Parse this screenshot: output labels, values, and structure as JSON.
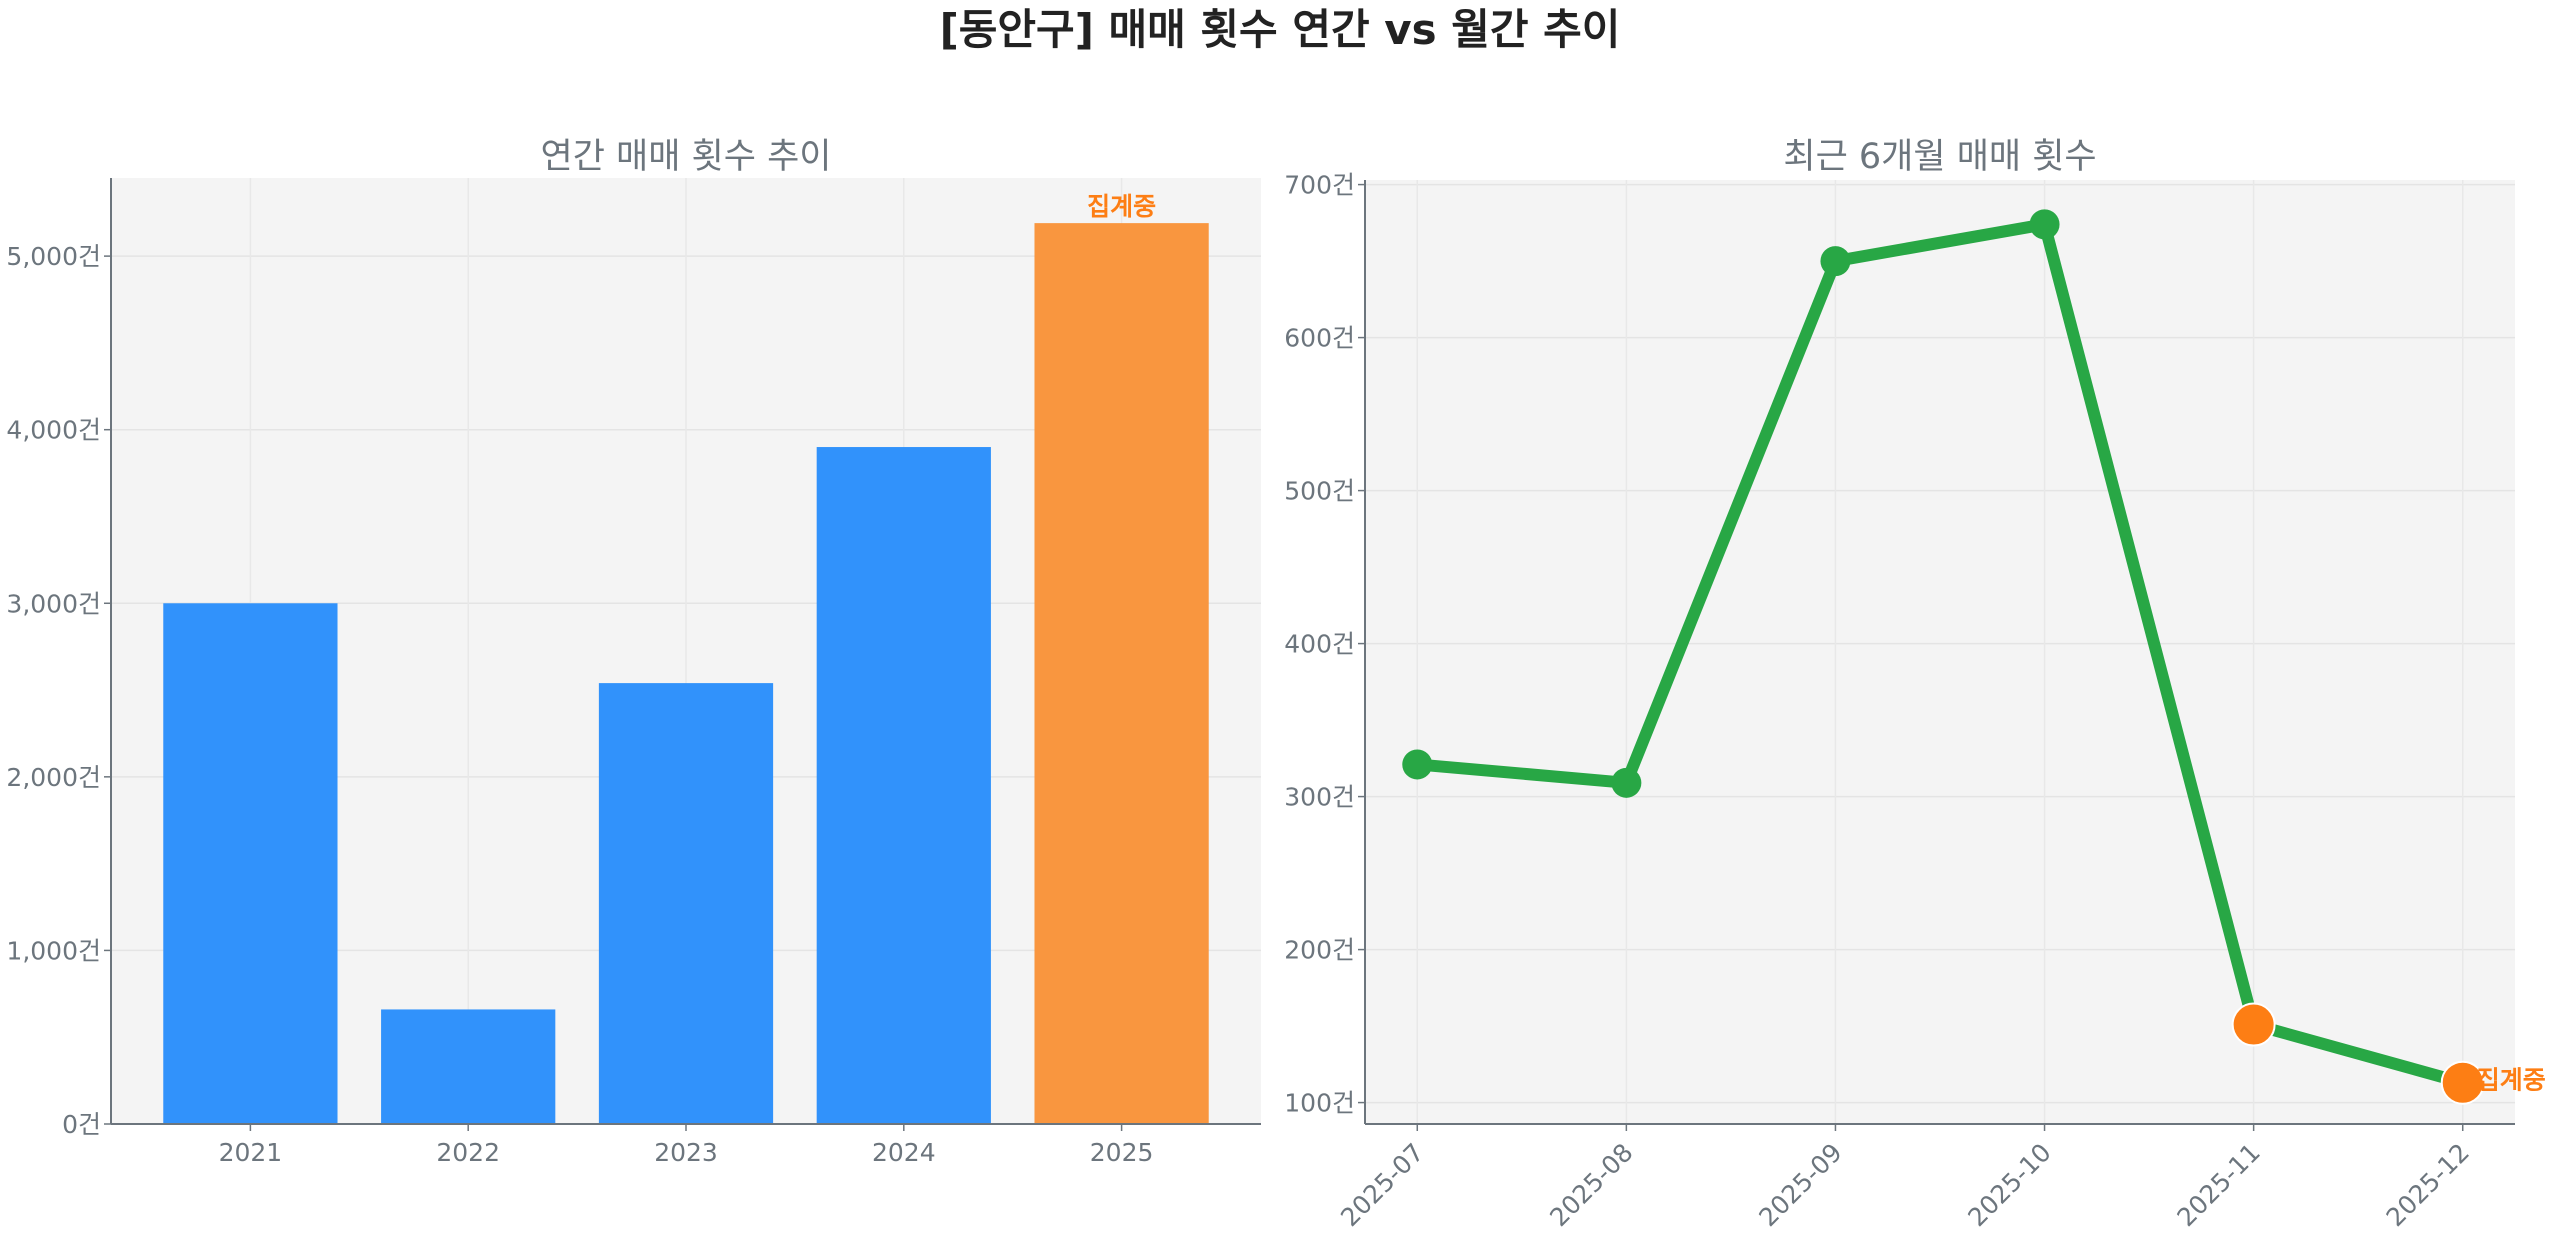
{
  "title": "[동안구] 매매 횟수 연간 vs 월간 추이",
  "colors": {
    "bar": "#3192fb",
    "bar_partial": "#f9963f",
    "line": "#28a745",
    "marker_partial": "#fd7e14",
    "annotation": "#fd7e14",
    "plot_bg": "#f4f4f4"
  },
  "chart_data": [
    {
      "type": "bar",
      "title": "연간 매매 횟수 추이",
      "categories": [
        "2021",
        "2022",
        "2023",
        "2024",
        "2025"
      ],
      "values": [
        3000,
        660,
        2540,
        3900,
        5190
      ],
      "partial": [
        false,
        false,
        false,
        false,
        true
      ],
      "annotation": {
        "category": "2025",
        "text": "집계중"
      },
      "ylim": [
        0,
        5450
      ],
      "yticks": [
        0,
        1000,
        2000,
        3000,
        4000,
        5000
      ],
      "ytick_labels": [
        "0건",
        "1,000건",
        "2,000건",
        "3,000건",
        "4,000건",
        "5,000건"
      ],
      "xlabel": "",
      "ylabel": "",
      "grid": true
    },
    {
      "type": "line",
      "title": "최근 6개월 매매 횟수",
      "categories": [
        "2025-07",
        "2025-08",
        "2025-09",
        "2025-10",
        "2025-11",
        "2025-12"
      ],
      "values": [
        321,
        309,
        650,
        674,
        151,
        113
      ],
      "partial": [
        false,
        false,
        false,
        false,
        true,
        true
      ],
      "annotation": {
        "category": "2025-12",
        "text": "집계중"
      },
      "ylim": [
        86,
        703
      ],
      "yticks": [
        100,
        200,
        300,
        400,
        500,
        600,
        700
      ],
      "ytick_labels": [
        "100건",
        "200건",
        "300건",
        "400건",
        "500건",
        "600건",
        "700건"
      ],
      "xlabel": "",
      "ylabel": "",
      "grid": true
    }
  ]
}
